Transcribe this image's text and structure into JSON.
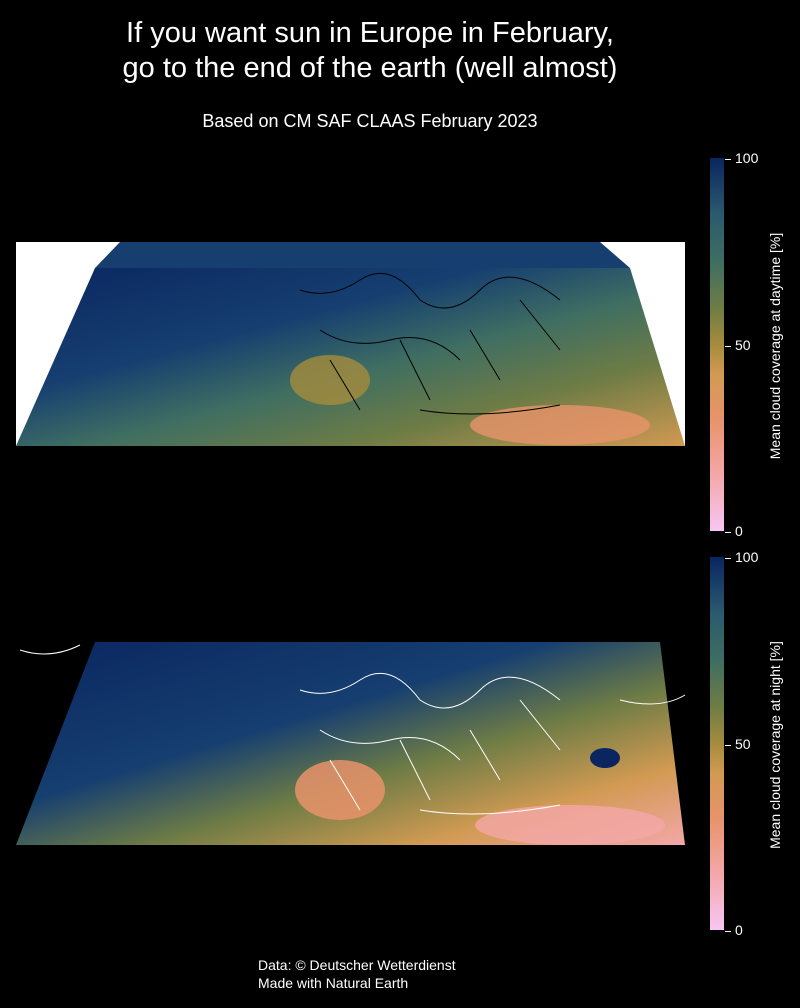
{
  "title_line1": "If you want sun in Europe in February,",
  "title_line2": "go to the end of the earth (well almost)",
  "subtitle": "Based on CM SAF CLAAS February 2023",
  "colors": {
    "background": "#000000",
    "scale": [
      "#f7c6f5",
      "#f4a7a8",
      "#e8936a",
      "#d19a52",
      "#a58c3c",
      "#6e7c45",
      "#3f6e62",
      "#2a5a6e",
      "#163f70",
      "#0a2560"
    ],
    "border_day": "#000000",
    "border_night": "#ffffff"
  },
  "maps": [
    {
      "name": "daytime",
      "colorbar": {
        "label": "Mean cloud coverage at daytime [%]",
        "ticks": [
          "100",
          "50",
          "0"
        ]
      }
    },
    {
      "name": "night",
      "colorbar": {
        "label": "Mean cloud coverage at night [%]",
        "ticks": [
          "100",
          "50",
          "0"
        ]
      }
    }
  ],
  "credits": {
    "line1": "Data: © Deutscher Wetterdienst",
    "line2": "Made with Natural Earth"
  }
}
